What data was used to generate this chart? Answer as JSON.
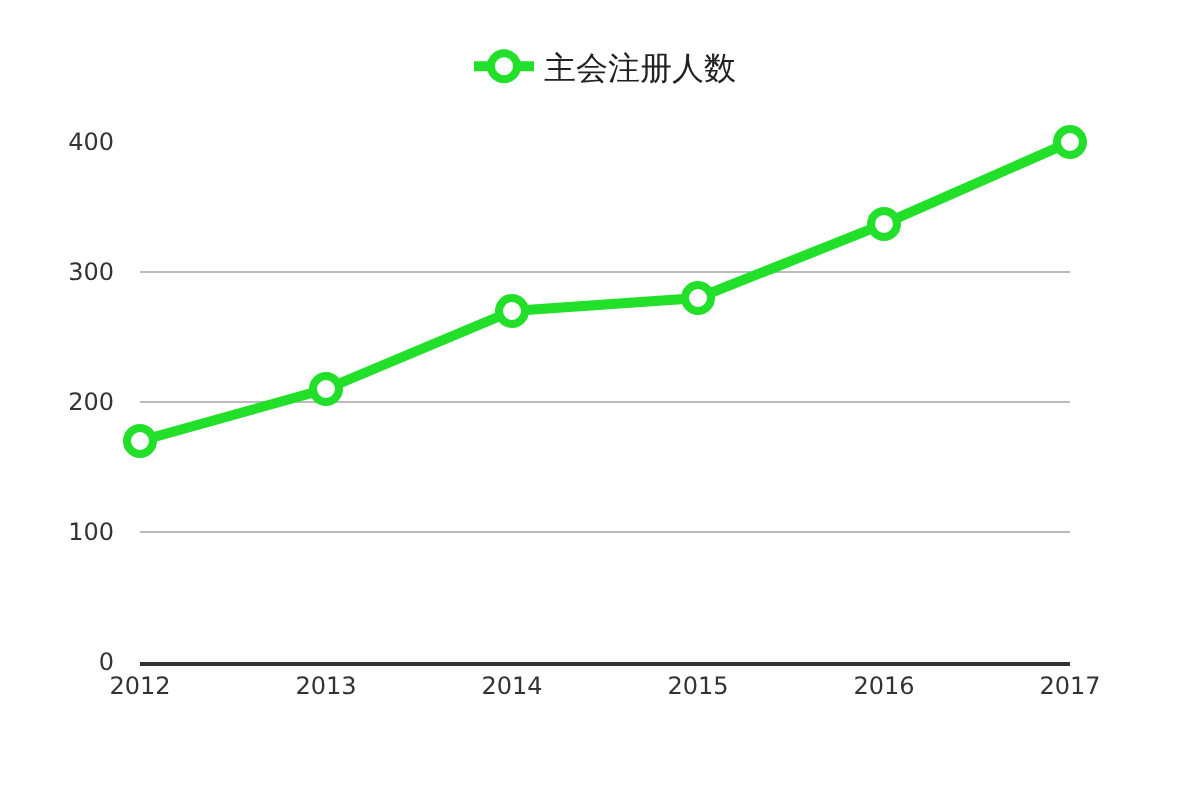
{
  "chart_data": {
    "type": "line",
    "x": [
      2012,
      2013,
      2014,
      2015,
      2016,
      2017
    ],
    "series": [
      {
        "name": "主会注册人数",
        "color": "#22e02a",
        "values": [
          170,
          210,
          270,
          280,
          337,
          400
        ]
      }
    ],
    "xlim": [
      2012,
      2017
    ],
    "xticks": [
      2012,
      2013,
      2014,
      2015,
      2016,
      2017
    ],
    "ylim": [
      0,
      400
    ],
    "yticks": [
      0,
      100,
      200,
      300,
      400
    ],
    "grid": "y",
    "legend": "top",
    "marker": "circle",
    "line_style": "solid"
  }
}
